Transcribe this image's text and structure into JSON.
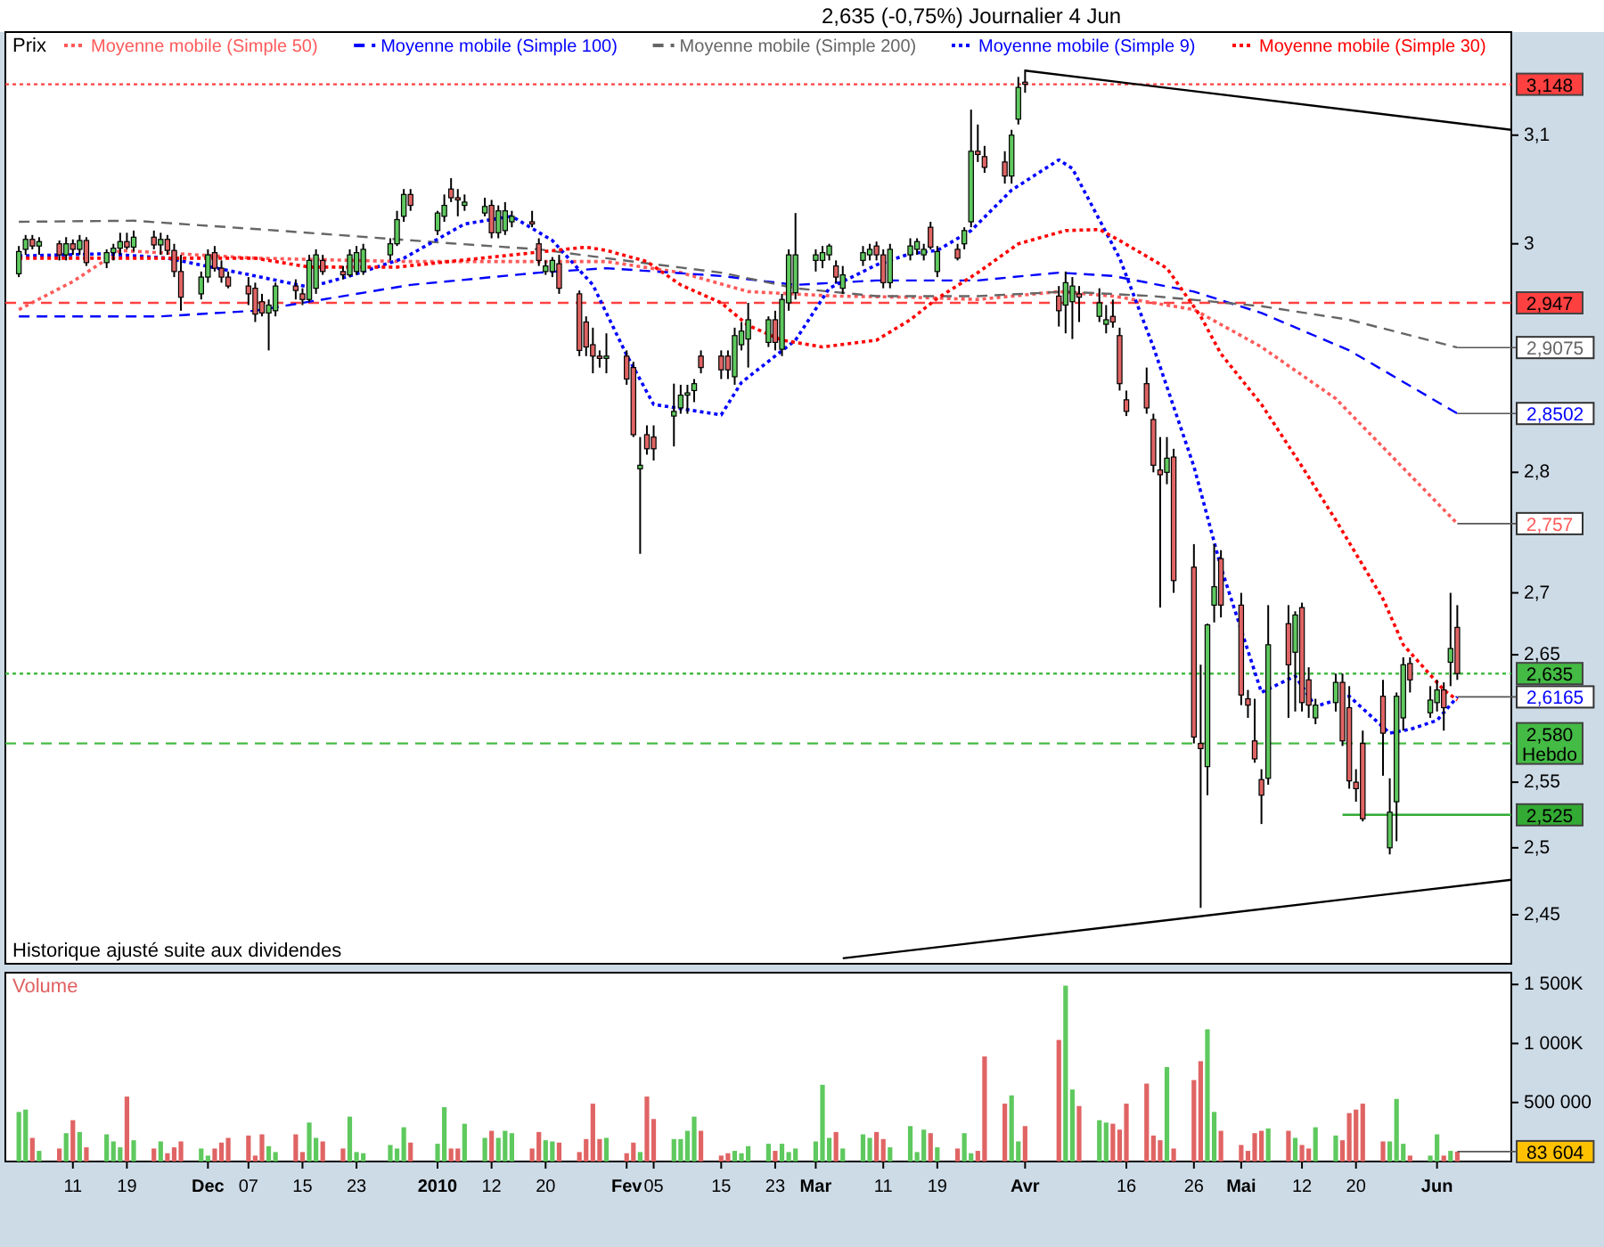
{
  "chart_data": [
    {
      "type": "candlestick",
      "title": "2,635 (-0,75%)   Journalier  4 Jun",
      "ylabel": "Prix",
      "log": "y",
      "legend": "top",
      "tick_labels": "y",
      "annotations": [
        "Historique ajusté suite aux dividendes",
        {
          "text": "2,9075",
          "x": "2010-06-04",
          "y": 2.9075
        },
        {
          "text": "2,8502",
          "x": "2010-06-04",
          "y": 2.8502
        },
        {
          "text": "2,757",
          "x": "2010-06-04",
          "y": 2.757
        },
        {
          "text": "2,6165",
          "x": "2010-06-04",
          "y": 2.6165
        },
        {
          "text": "2,525",
          "x": "2010-06-12",
          "y": 2.525
        }
      ],
      "xlim": [
        "2009-11-01",
        "2010-06-12"
      ],
      "ylim": [
        2.414,
        3.198
      ],
      "yticks": [
        {
          "value": 3.1,
          "label": "3,1"
        },
        3,
        {
          "value": 2.8,
          "label": "2,8"
        },
        {
          "value": 2.7,
          "label": "2,7"
        },
        {
          "value": 2.65,
          "label": "2,65"
        },
        {
          "value": 2.55,
          "label": "2,55"
        },
        {
          "value": 2.5,
          "label": "2,5"
        },
        {
          "value": 2.45,
          "label": "2,45"
        }
      ],
      "x": [
        "2009-11-03",
        "2009-11-04",
        "2009-11-05",
        "2009-11-06",
        "2009-11-09",
        "2009-11-10",
        "2009-11-11",
        "2009-11-12",
        "2009-11-13",
        "2009-11-16",
        "2009-11-17",
        "2009-11-18",
        "2009-11-19",
        "2009-11-20",
        "2009-11-23",
        "2009-11-24",
        "2009-11-25",
        "2009-11-26",
        "2009-11-27",
        "2009-11-30",
        "2009-12-01",
        "2009-12-02",
        "2009-12-03",
        "2009-12-04",
        "2009-12-07",
        "2009-12-08",
        "2009-12-09",
        "2009-12-10",
        "2009-12-11",
        "2009-12-14",
        "2009-12-15",
        "2009-12-16",
        "2009-12-17",
        "2009-12-18",
        "2009-12-21",
        "2009-12-22",
        "2009-12-23",
        "2009-12-24",
        "2009-12-28",
        "2009-12-29",
        "2009-12-30",
        "2009-12-31",
        "2010-01-04",
        "2010-01-05",
        "2010-01-06",
        "2010-01-07",
        "2010-01-08",
        "2010-01-11",
        "2010-01-12",
        "2010-01-13",
        "2010-01-14",
        "2010-01-15",
        "2010-01-18",
        "2010-01-19",
        "2010-01-20",
        "2010-01-21",
        "2010-01-22",
        "2010-01-25",
        "2010-01-26",
        "2010-01-27",
        "2010-01-28",
        "2010-01-29",
        "2010-02-01",
        "2010-02-02",
        "2010-02-03",
        "2010-02-04",
        "2010-02-05",
        "2010-02-08",
        "2010-02-09",
        "2010-02-10",
        "2010-02-11",
        "2010-02-12",
        "2010-02-15",
        "2010-02-16",
        "2010-02-17",
        "2010-02-18",
        "2010-02-19",
        "2010-02-22",
        "2010-02-23",
        "2010-02-24",
        "2010-02-25",
        "2010-02-26",
        "2010-03-01",
        "2010-03-02",
        "2010-03-03",
        "2010-03-04",
        "2010-03-05",
        "2010-03-08",
        "2010-03-09",
        "2010-03-10",
        "2010-03-11",
        "2010-03-12",
        "2010-03-15",
        "2010-03-16",
        "2010-03-17",
        "2010-03-18",
        "2010-03-19",
        "2010-03-22",
        "2010-03-23",
        "2010-03-24",
        "2010-03-25",
        "2010-03-26",
        "2010-03-29",
        "2010-03-30",
        "2010-03-31",
        "2010-04-01",
        "2010-04-06",
        "2010-04-07",
        "2010-04-08",
        "2010-04-09",
        "2010-04-12",
        "2010-04-13",
        "2010-04-14",
        "2010-04-15",
        "2010-04-16",
        "2010-04-19",
        "2010-04-20",
        "2010-04-21",
        "2010-04-22",
        "2010-04-23",
        "2010-04-26",
        "2010-04-27",
        "2010-04-28",
        "2010-04-29",
        "2010-04-30",
        "2010-05-03",
        "2010-05-04",
        "2010-05-05",
        "2010-05-06",
        "2010-05-07",
        "2010-05-10",
        "2010-05-11",
        "2010-05-12",
        "2010-05-13",
        "2010-05-14",
        "2010-05-17",
        "2010-05-18",
        "2010-05-19",
        "2010-05-20",
        "2010-05-21",
        "2010-05-24",
        "2010-05-25",
        "2010-05-26",
        "2010-05-27",
        "2010-05-28",
        "2010-05-31",
        "2010-06-01",
        "2010-06-02",
        "2010-06-03",
        "2010-06-04"
      ],
      "ohlc": [
        [
          2.973,
          2.998,
          2.97,
          2.993
        ],
        [
          2.995,
          3.008,
          2.99,
          3.004
        ],
        [
          3.004,
          3.008,
          2.995,
          2.998
        ],
        [
          2.998,
          3.006,
          2.99,
          3.002
        ],
        [
          3.0,
          3.003,
          2.985,
          2.99
        ],
        [
          2.99,
          3.006,
          2.985,
          3.0
        ],
        [
          3.0,
          3.004,
          2.99,
          2.995
        ],
        [
          2.995,
          3.008,
          2.99,
          3.003
        ],
        [
          3.003,
          3.006,
          2.98,
          2.983
        ],
        [
          2.983,
          2.995,
          2.978,
          2.992
        ],
        [
          2.992,
          3.0,
          2.985,
          2.996
        ],
        [
          2.996,
          3.01,
          2.99,
          3.002
        ],
        [
          3.002,
          3.01,
          2.995,
          2.997
        ],
        [
          2.997,
          3.012,
          2.993,
          3.006
        ],
        [
          3.006,
          3.012,
          2.995,
          2.999
        ],
        [
          2.999,
          3.01,
          2.99,
          3.004
        ],
        [
          3.004,
          3.008,
          2.99,
          2.994
        ],
        [
          2.994,
          3.0,
          2.97,
          2.975
        ],
        [
          2.975,
          2.99,
          2.94,
          2.952
        ],
        [
          2.955,
          2.975,
          2.95,
          2.97
        ],
        [
          2.97,
          2.995,
          2.965,
          2.99
        ],
        [
          2.992,
          2.998,
          2.975,
          2.978
        ],
        [
          2.978,
          2.985,
          2.965,
          2.97
        ],
        [
          2.97,
          2.975,
          2.96,
          2.962
        ],
        [
          2.962,
          2.97,
          2.945,
          2.955
        ],
        [
          2.96,
          2.965,
          2.93,
          2.937
        ],
        [
          2.948,
          2.955,
          2.935,
          2.938
        ],
        [
          2.938,
          2.95,
          2.905,
          2.945
        ],
        [
          2.94,
          2.965,
          2.935,
          2.962
        ],
        [
          2.962,
          2.968,
          2.95,
          2.958
        ],
        [
          2.955,
          2.96,
          2.945,
          2.95
        ],
        [
          2.95,
          2.99,
          2.948,
          2.985
        ],
        [
          2.96,
          2.995,
          2.955,
          2.99
        ],
        [
          2.985,
          2.99,
          2.972,
          2.975
        ],
        [
          2.975,
          2.98,
          2.968,
          2.972
        ],
        [
          2.972,
          2.995,
          2.97,
          2.99
        ],
        [
          2.975,
          2.998,
          2.972,
          2.992
        ],
        [
          2.975,
          3.0,
          2.972,
          2.995
        ],
        [
          2.99,
          3.005,
          2.985,
          3.0
        ],
        [
          3.0,
          3.03,
          2.998,
          3.022
        ],
        [
          3.025,
          3.05,
          3.02,
          3.045
        ],
        [
          3.045,
          3.05,
          3.03,
          3.035
        ],
        [
          3.012,
          3.03,
          3.008,
          3.028
        ],
        [
          3.025,
          3.045,
          3.02,
          3.035
        ],
        [
          3.05,
          3.06,
          3.038,
          3.042
        ],
        [
          3.042,
          3.05,
          3.025,
          3.04
        ],
        [
          3.035,
          3.045,
          3.03,
          3.038
        ],
        [
          3.028,
          3.042,
          3.025,
          3.034
        ],
        [
          3.035,
          3.04,
          3.005,
          3.01
        ],
        [
          3.01,
          3.035,
          3.005,
          3.03
        ],
        [
          3.012,
          3.038,
          3.008,
          3.03
        ],
        [
          3.02,
          3.03,
          3.015,
          3.025
        ],
        [
          3.02,
          3.03,
          3.015,
          3.018
        ],
        [
          3.0,
          3.005,
          2.98,
          2.985
        ],
        [
          2.975,
          2.985,
          2.972,
          2.98
        ],
        [
          2.975,
          2.988,
          2.97,
          2.985
        ],
        [
          2.982,
          2.99,
          2.955,
          2.96
        ],
        [
          2.955,
          2.958,
          2.9,
          2.905
        ],
        [
          2.93,
          2.935,
          2.9,
          2.908
        ],
        [
          2.91,
          2.925,
          2.885,
          2.9
        ],
        [
          2.9,
          2.905,
          2.89,
          2.898
        ],
        [
          2.898,
          2.92,
          2.885,
          2.9
        ],
        [
          2.9,
          2.905,
          2.875,
          2.88
        ],
        [
          2.89,
          2.895,
          2.83,
          2.832
        ],
        [
          2.803,
          2.83,
          2.732,
          2.806
        ],
        [
          2.832,
          2.84,
          2.815,
          2.82
        ],
        [
          2.83,
          2.84,
          2.81,
          2.82
        ],
        [
          2.848,
          2.876,
          2.822,
          2.852
        ],
        [
          2.855,
          2.875,
          2.85,
          2.866
        ],
        [
          2.866,
          2.875,
          2.85,
          2.868
        ],
        [
          2.87,
          2.88,
          2.86,
          2.876
        ],
        [
          2.9,
          2.905,
          2.885,
          2.89
        ],
        [
          2.9,
          2.905,
          2.88,
          2.888
        ],
        [
          2.9,
          2.905,
          2.88,
          2.888
        ],
        [
          2.882,
          2.925,
          2.875,
          2.918
        ],
        [
          2.91,
          2.93,
          2.905,
          2.922
        ],
        [
          2.915,
          2.947,
          2.89,
          2.932
        ],
        [
          2.912,
          2.935,
          2.908,
          2.932
        ],
        [
          2.932,
          2.94,
          2.905,
          2.912
        ],
        [
          2.906,
          2.955,
          2.9,
          2.95
        ],
        [
          2.947,
          2.995,
          2.94,
          2.99
        ],
        [
          2.956,
          3.028,
          2.95,
          2.99
        ],
        [
          2.985,
          2.995,
          2.975,
          2.99
        ],
        [
          2.985,
          2.998,
          2.978,
          2.992
        ],
        [
          2.99,
          3.0,
          2.985,
          2.998
        ],
        [
          2.98,
          2.985,
          2.965,
          2.97
        ],
        [
          2.96,
          2.98,
          2.955,
          2.972
        ],
        [
          2.985,
          2.998,
          2.98,
          2.992
        ],
        [
          2.99,
          3.0,
          2.985,
          2.995
        ],
        [
          2.998,
          3.002,
          2.985,
          2.99
        ],
        [
          2.99,
          2.995,
          2.96,
          2.965
        ],
        [
          2.965,
          3.0,
          2.96,
          2.995
        ],
        [
          2.99,
          3.005,
          2.985,
          2.998
        ],
        [
          2.995,
          3.005,
          2.99,
          3.002
        ],
        [
          2.99,
          3.0,
          2.985,
          2.995
        ],
        [
          3.015,
          3.02,
          2.995,
          2.997
        ],
        [
          2.975,
          2.998,
          2.97,
          2.993
        ],
        [
          2.995,
          3.0,
          2.985,
          2.987
        ],
        [
          3.0,
          3.015,
          2.995,
          3.012
        ],
        [
          3.02,
          3.124,
          3.015,
          3.085
        ],
        [
          3.085,
          3.11,
          3.075,
          3.082
        ],
        [
          3.08,
          3.09,
          3.065,
          3.07
        ],
        [
          3.075,
          3.085,
          3.055,
          3.062
        ],
        [
          3.062,
          3.105,
          3.055,
          3.1
        ],
        [
          3.115,
          3.155,
          3.11,
          3.145
        ],
        [
          3.15,
          3.162,
          3.14,
          3.148
        ],
        [
          2.953,
          2.962,
          2.926,
          2.94
        ],
        [
          2.945,
          2.975,
          2.92,
          2.965
        ],
        [
          2.948,
          2.97,
          2.915,
          2.962
        ],
        [
          2.955,
          2.962,
          2.93,
          2.952
        ],
        [
          2.935,
          2.96,
          2.93,
          2.947
        ],
        [
          2.928,
          2.945,
          2.92,
          2.932
        ],
        [
          2.935,
          2.95,
          2.925,
          2.93
        ],
        [
          2.918,
          2.925,
          2.87,
          2.876
        ],
        [
          2.862,
          2.87,
          2.848,
          2.852
        ],
        [
          2.876,
          2.89,
          2.85,
          2.855
        ],
        [
          2.845,
          2.85,
          2.8,
          2.806
        ],
        [
          2.802,
          2.83,
          2.688,
          2.798
        ],
        [
          2.8,
          2.83,
          2.79,
          2.812
        ],
        [
          2.813,
          2.82,
          2.7,
          2.71
        ],
        [
          2.721,
          2.74,
          2.58,
          2.585
        ],
        [
          2.58,
          2.642,
          2.455,
          2.576
        ],
        [
          2.562,
          2.675,
          2.54,
          2.674
        ],
        [
          2.69,
          2.74,
          2.676,
          2.705
        ],
        [
          2.728,
          2.735,
          2.68,
          2.69
        ],
        [
          2.69,
          2.7,
          2.61,
          2.618
        ],
        [
          2.615,
          2.622,
          2.6,
          2.61
        ],
        [
          2.582,
          2.615,
          2.565,
          2.568
        ],
        [
          2.552,
          2.56,
          2.518,
          2.54
        ],
        [
          2.553,
          2.69,
          2.548,
          2.658
        ],
        [
          2.675,
          2.69,
          2.6,
          2.642
        ],
        [
          2.652,
          2.685,
          2.605,
          2.682
        ],
        [
          2.688,
          2.692,
          2.605,
          2.612
        ],
        [
          2.63,
          2.64,
          2.6,
          2.61
        ],
        [
          2.6,
          2.615,
          2.595,
          2.61
        ],
        [
          2.612,
          2.635,
          2.605,
          2.628
        ],
        [
          2.628,
          2.635,
          2.578,
          2.582
        ],
        [
          2.608,
          2.625,
          2.545,
          2.551
        ],
        [
          2.55,
          2.56,
          2.535,
          2.545
        ],
        [
          2.58,
          2.59,
          2.52,
          2.522
        ],
        [
          2.617,
          2.63,
          2.555,
          2.588
        ],
        [
          2.5,
          2.553,
          2.495,
          2.527
        ],
        [
          2.535,
          2.62,
          2.505,
          2.617
        ],
        [
          2.6,
          2.648,
          2.59,
          2.642
        ],
        [
          2.643,
          2.648,
          2.62,
          2.63
        ],
        [
          2.604,
          2.625,
          2.6,
          2.614
        ],
        [
          2.612,
          2.63,
          2.605,
          2.622
        ],
        [
          2.622,
          2.628,
          2.59,
          2.608
        ],
        [
          2.644,
          2.7,
          2.625,
          2.655
        ],
        [
          2.672,
          2.69,
          2.63,
          2.635
        ]
      ],
      "colors": [
        "#5ec95e",
        "#5ec95e",
        "#e06464",
        "#5ec95e",
        "#e06464",
        "#5ec95e",
        "#e06464",
        "#5ec95e",
        "#e06464",
        "#5ec95e",
        "#5ec95e",
        "#5ec95e",
        "#e06464",
        "#5ec95e",
        "#e06464",
        "#5ec95e",
        "#e06464",
        "#e06464",
        "#e06464",
        "#5ec95e",
        "#5ec95e",
        "#e06464",
        "#e06464",
        "#e06464",
        "#e06464",
        "#e06464",
        "#e06464",
        "#5ec95e",
        "#5ec95e",
        "#e06464",
        "#e06464",
        "#5ec95e",
        "#5ec95e",
        "#e06464",
        "#e06464",
        "#5ec95e",
        "#5ec95e",
        "#5ec95e",
        "#5ec95e",
        "#5ec95e",
        "#5ec95e",
        "#e06464",
        "#5ec95e",
        "#5ec95e",
        "#e06464",
        "#e06464",
        "#5ec95e",
        "#5ec95e",
        "#e06464",
        "#5ec95e",
        "#5ec95e",
        "#5ec95e",
        "#e06464",
        "#e06464",
        "#5ec95e",
        "#5ec95e",
        "#e06464",
        "#e06464",
        "#e06464",
        "#e06464",
        "#e06464",
        "#5ec95e",
        "#e06464",
        "#e06464",
        "#5ec95e",
        "#e06464",
        "#e06464",
        "#5ec95e",
        "#5ec95e",
        "#5ec95e",
        "#5ec95e",
        "#e06464",
        "#e06464",
        "#e06464",
        "#5ec95e",
        "#5ec95e",
        "#5ec95e",
        "#5ec95e",
        "#e06464",
        "#5ec95e",
        "#5ec95e",
        "#5ec95e",
        "#5ec95e",
        "#5ec95e",
        "#5ec95e",
        "#e06464",
        "#5ec95e",
        "#5ec95e",
        "#5ec95e",
        "#e06464",
        "#e06464",
        "#5ec95e",
        "#5ec95e",
        "#5ec95e",
        "#5ec95e",
        "#e06464",
        "#5ec95e",
        "#e06464",
        "#5ec95e",
        "#5ec95e",
        "#e06464",
        "#e06464",
        "#e06464",
        "#5ec95e",
        "#5ec95e",
        "#e06464",
        "#e06464",
        "#5ec95e",
        "#5ec95e",
        "#e06464",
        "#5ec95e",
        "#5ec95e",
        "#e06464",
        "#e06464",
        "#e06464",
        "#e06464",
        "#e06464",
        "#e06464",
        "#5ec95e",
        "#e06464",
        "#e06464",
        "#e06464",
        "#5ec95e",
        "#5ec95e",
        "#e06464",
        "#e06464",
        "#e06464",
        "#e06464",
        "#e06464",
        "#5ec95e",
        "#e06464",
        "#5ec95e",
        "#e06464",
        "#e06464",
        "#5ec95e",
        "#5ec95e",
        "#e06464",
        "#e06464",
        "#e06464",
        "#e06464",
        "#e06464",
        "#5ec95e",
        "#5ec95e",
        "#5ec95e",
        "#e06464",
        "#5ec95e",
        "#5ec95e",
        "#e06464",
        "#5ec95e",
        "#e06464"
      ],
      "series": [
        {
          "type": "line",
          "name": "Moyenne mobile (Simple 50)",
          "color": "#ff5a5a",
          "line_style": "dotted",
          "x": [
            "2009-11-03",
            "2009-11-11",
            "2009-11-18",
            "2009-12-08",
            "2009-12-30",
            "2010-01-21",
            "2010-01-29",
            "2010-02-09",
            "2010-02-19",
            "2010-03-04",
            "2010-03-15",
            "2010-03-25",
            "2010-04-06",
            "2010-04-14",
            "2010-04-26",
            "2010-05-06",
            "2010-05-17",
            "2010-06-04"
          ],
          "values": [
            2.941,
            2.966,
            2.994,
            2.987,
            2.984,
            2.984,
            2.984,
            2.974,
            2.957,
            2.953,
            2.952,
            2.95,
            2.957,
            2.953,
            2.941,
            2.908,
            2.863,
            2.757
          ]
        },
        {
          "type": "line",
          "name": "Moyenne mobile (Simple 100)",
          "color": "#0000ff",
          "line_style": "dashed",
          "x": [
            "2009-11-03",
            "2009-11-24",
            "2009-12-08",
            "2009-12-18",
            "2009-12-31",
            "2010-01-19",
            "2010-01-29",
            "2010-02-15",
            "2010-02-26",
            "2010-03-10",
            "2010-03-25",
            "2010-04-06",
            "2010-04-14",
            "2010-04-26",
            "2010-05-06",
            "2010-05-19",
            "2010-06-04"
          ],
          "values": [
            2.935,
            2.935,
            2.94,
            2.95,
            2.963,
            2.974,
            2.978,
            2.971,
            2.963,
            2.967,
            2.967,
            2.974,
            2.971,
            2.957,
            2.938,
            2.905,
            2.8502
          ]
        },
        {
          "type": "line",
          "name": "Moyenne mobile (Simple 200)",
          "color": "#666666",
          "line_style": "dashed",
          "x": [
            "2009-11-03",
            "2009-11-20",
            "2009-12-09",
            "2009-12-18",
            "2010-01-07",
            "2010-01-19",
            "2010-01-29",
            "2010-02-15",
            "2010-02-26",
            "2010-03-10",
            "2010-03-25",
            "2010-04-07",
            "2010-04-20",
            "2010-05-06",
            "2010-05-19",
            "2010-06-04"
          ],
          "values": [
            3.02,
            3.021,
            3.013,
            3.009,
            3.0,
            2.995,
            2.987,
            2.974,
            2.96,
            2.953,
            2.953,
            2.957,
            2.953,
            2.944,
            2.932,
            2.9075
          ]
        },
        {
          "type": "line",
          "name": "Moyenne mobile (Simple 9)",
          "color": "#0000ff",
          "line_style": "dotted",
          "x": [
            "2009-11-03",
            "2009-11-16",
            "2009-11-25",
            "2009-12-08",
            "2009-12-16",
            "2009-12-22",
            "2009-12-30",
            "2010-01-08",
            "2010-01-15",
            "2010-01-21",
            "2010-01-27",
            "2010-02-01",
            "2010-02-05",
            "2010-02-15",
            "2010-02-18",
            "2010-02-26",
            "2010-03-03",
            "2010-03-10",
            "2010-03-15",
            "2010-03-19",
            "2010-03-24",
            "2010-03-30",
            "2010-04-06",
            "2010-04-08",
            "2010-04-15",
            "2010-04-20",
            "2010-04-26",
            "2010-04-30",
            "2010-05-06",
            "2010-05-11",
            "2010-05-14",
            "2010-05-19",
            "2010-05-25",
            "2010-05-28",
            "2010-06-01",
            "2010-06-04"
          ],
          "values": [
            2.989,
            2.991,
            2.987,
            2.971,
            2.961,
            2.971,
            2.987,
            3.018,
            3.025,
            3.003,
            2.963,
            2.901,
            2.858,
            2.849,
            2.877,
            2.914,
            2.96,
            2.981,
            2.991,
            2.994,
            3.012,
            3.049,
            3.077,
            3.069,
            2.987,
            2.908,
            2.805,
            2.721,
            2.62,
            2.633,
            2.609,
            2.617,
            2.588,
            2.591,
            2.598,
            2.6165
          ]
        },
        {
          "type": "line",
          "name": "Moyenne mobile (Simple 30)",
          "color": "#ff0000",
          "line_style": "dotted",
          "x": [
            "2009-11-03",
            "2009-11-25",
            "2009-12-08",
            "2009-12-16",
            "2009-12-22",
            "2009-12-29",
            "2010-01-26",
            "2010-01-29",
            "2010-02-04",
            "2010-02-09",
            "2010-02-15",
            "2010-02-19",
            "2010-02-24",
            "2010-03-02",
            "2010-03-10",
            "2010-03-15",
            "2010-03-19",
            "2010-03-25",
            "2010-03-31",
            "2010-04-07",
            "2010-04-12",
            "2010-04-15",
            "2010-04-22",
            "2010-04-27",
            "2010-04-30",
            "2010-05-06",
            "2010-05-12",
            "2010-05-17",
            "2010-05-24",
            "2010-05-27",
            "2010-06-02",
            "2010-06-04"
          ],
          "values": [
            2.987,
            2.987,
            2.987,
            2.979,
            2.979,
            2.979,
            2.997,
            2.994,
            2.984,
            2.963,
            2.947,
            2.927,
            2.914,
            2.908,
            2.914,
            2.932,
            2.951,
            2.974,
            3.0,
            3.012,
            3.013,
            3.003,
            2.978,
            2.935,
            2.902,
            2.858,
            2.805,
            2.76,
            2.695,
            2.658,
            2.622,
            2.614
          ]
        },
        {
          "type": "line",
          "color": "#33aa33",
          "line_style": "solid",
          "x": [
            "2010-05-18",
            "2010-06-12"
          ],
          "values": [
            2.525,
            2.525
          ]
        },
        {
          "type": "line",
          "color": "#000000",
          "line_style": "solid",
          "x": [
            "2010-04-01",
            "2010-06-12"
          ],
          "values": [
            3.161,
            3.105
          ]
        },
        {
          "type": "line",
          "color": "#000000",
          "line_style": "solid",
          "x": [
            "2010-03-05",
            "2010-06-12"
          ],
          "values": [
            2.418,
            2.476
          ]
        }
      ],
      "ref_lines": [
        {
          "axis": "y",
          "value": 3.148,
          "label": "3,148",
          "color": "#ff4040",
          "line_style": "dotted"
        },
        {
          "axis": "y",
          "value": 2.947,
          "label": "2,947",
          "color": "#ff4040",
          "line_style": "dashed"
        },
        {
          "axis": "y",
          "value": 2.635,
          "label": "2,635",
          "color": "#44bb44",
          "line_style": "dotted"
        },
        {
          "axis": "y",
          "value": 2.58,
          "label": "2,580 Hebdo",
          "color": "#44bb44",
          "line_style": "dashed"
        }
      ]
    },
    {
      "type": "bar",
      "title": "Volume",
      "xlim": [
        "2009-11-01",
        "2010-06-12"
      ],
      "ylim": [
        0,
        1600000
      ],
      "annotations": [
        {
          "text": "83 604",
          "x": "2010-06-04",
          "y": 83604
        }
      ],
      "yticks": [
        {
          "value": 1500000,
          "label": "1 500K"
        },
        {
          "value": 1000000,
          "label": "1 000K"
        },
        {
          "value": 500000,
          "label": "500 000"
        }
      ],
      "xticks": [
        {
          "value": "2009-11-11",
          "label": "11"
        },
        {
          "value": "2009-11-19",
          "label": "19"
        },
        {
          "value": "2009-12-01",
          "label": "Dec"
        },
        {
          "value": "2009-12-07",
          "label": "07"
        },
        {
          "value": "2009-12-15",
          "label": "15"
        },
        {
          "value": "2009-12-23",
          "label": "23"
        },
        {
          "value": "2010-01-04",
          "label": "2010"
        },
        {
          "value": "2010-01-12",
          "label": "12"
        },
        {
          "value": "2010-01-20",
          "label": "20"
        },
        {
          "value": "2010-02-01",
          "label": "Fev"
        },
        {
          "value": "2010-02-05",
          "label": "05"
        },
        {
          "value": "2010-02-15",
          "label": "15"
        },
        {
          "value": "2010-02-23",
          "label": "23"
        },
        {
          "value": "2010-03-01",
          "label": "Mar"
        },
        {
          "value": "2010-03-11",
          "label": "11"
        },
        {
          "value": "2010-03-19",
          "label": "19"
        },
        {
          "value": "2010-04-01",
          "label": "Avr"
        },
        {
          "value": "2010-04-16",
          "label": "16"
        },
        {
          "value": "2010-04-26",
          "label": "26"
        },
        {
          "value": "2010-05-03",
          "label": "Mai"
        },
        {
          "value": "2010-05-12",
          "label": "12"
        },
        {
          "value": "2010-05-20",
          "label": "20"
        },
        {
          "value": "2010-06-01",
          "label": "Jun"
        }
      ],
      "x": [
        "2009-11-03",
        "2009-11-04",
        "2009-11-05",
        "2009-11-06",
        "2009-11-09",
        "2009-11-10",
        "2009-11-11",
        "2009-11-12",
        "2009-11-13",
        "2009-11-16",
        "2009-11-17",
        "2009-11-18",
        "2009-11-19",
        "2009-11-20",
        "2009-11-23",
        "2009-11-24",
        "2009-11-25",
        "2009-11-26",
        "2009-11-27",
        "2009-11-30",
        "2009-12-01",
        "2009-12-02",
        "2009-12-03",
        "2009-12-04",
        "2009-12-07",
        "2009-12-08",
        "2009-12-09",
        "2009-12-10",
        "2009-12-11",
        "2009-12-14",
        "2009-12-15",
        "2009-12-16",
        "2009-12-17",
        "2009-12-18",
        "2009-12-21",
        "2009-12-22",
        "2009-12-23",
        "2009-12-24",
        "2009-12-28",
        "2009-12-29",
        "2009-12-30",
        "2009-12-31",
        "2010-01-04",
        "2010-01-05",
        "2010-01-06",
        "2010-01-07",
        "2010-01-08",
        "2010-01-11",
        "2010-01-12",
        "2010-01-13",
        "2010-01-14",
        "2010-01-15",
        "2010-01-18",
        "2010-01-19",
        "2010-01-20",
        "2010-01-21",
        "2010-01-22",
        "2010-01-25",
        "2010-01-26",
        "2010-01-27",
        "2010-01-28",
        "2010-01-29",
        "2010-02-01",
        "2010-02-02",
        "2010-02-03",
        "2010-02-04",
        "2010-02-05",
        "2010-02-08",
        "2010-02-09",
        "2010-02-10",
        "2010-02-11",
        "2010-02-12",
        "2010-02-15",
        "2010-02-16",
        "2010-02-17",
        "2010-02-18",
        "2010-02-19",
        "2010-02-22",
        "2010-02-23",
        "2010-02-24",
        "2010-02-25",
        "2010-02-26",
        "2010-03-01",
        "2010-03-02",
        "2010-03-03",
        "2010-03-04",
        "2010-03-05",
        "2010-03-08",
        "2010-03-09",
        "2010-03-10",
        "2010-03-11",
        "2010-03-12",
        "2010-03-15",
        "2010-03-16",
        "2010-03-17",
        "2010-03-18",
        "2010-03-19",
        "2010-03-22",
        "2010-03-23",
        "2010-03-24",
        "2010-03-25",
        "2010-03-26",
        "2010-03-29",
        "2010-03-30",
        "2010-03-31",
        "2010-04-01",
        "2010-04-06",
        "2010-04-07",
        "2010-04-08",
        "2010-04-09",
        "2010-04-12",
        "2010-04-13",
        "2010-04-14",
        "2010-04-15",
        "2010-04-16",
        "2010-04-19",
        "2010-04-20",
        "2010-04-21",
        "2010-04-22",
        "2010-04-23",
        "2010-04-26",
        "2010-04-27",
        "2010-04-28",
        "2010-04-29",
        "2010-04-30",
        "2010-05-03",
        "2010-05-04",
        "2010-05-05",
        "2010-05-06",
        "2010-05-07",
        "2010-05-10",
        "2010-05-11",
        "2010-05-12",
        "2010-05-13",
        "2010-05-14",
        "2010-05-17",
        "2010-05-18",
        "2010-05-19",
        "2010-05-20",
        "2010-05-21",
        "2010-05-24",
        "2010-05-25",
        "2010-05-26",
        "2010-05-27",
        "2010-05-28",
        "2010-05-31",
        "2010-06-01",
        "2010-06-02",
        "2010-06-03",
        "2010-06-04"
      ],
      "values": [
        420000,
        440000,
        200000,
        90000,
        110000,
        240000,
        350000,
        250000,
        120000,
        230000,
        170000,
        120000,
        550000,
        180000,
        110000,
        170000,
        70000,
        120000,
        170000,
        110000,
        50000,
        110000,
        160000,
        200000,
        220000,
        50000,
        230000,
        130000,
        80000,
        230000,
        80000,
        330000,
        200000,
        170000,
        110000,
        380000,
        80000,
        70000,
        140000,
        110000,
        290000,
        160000,
        150000,
        460000,
        110000,
        110000,
        320000,
        200000,
        260000,
        200000,
        260000,
        240000,
        110000,
        250000,
        180000,
        170000,
        160000,
        80000,
        190000,
        490000,
        190000,
        200000,
        70000,
        160000,
        80000,
        550000,
        360000,
        190000,
        190000,
        260000,
        380000,
        260000,
        50000,
        70000,
        90000,
        70000,
        130000,
        150000,
        90000,
        150000,
        80000,
        110000,
        170000,
        650000,
        200000,
        250000,
        110000,
        230000,
        200000,
        250000,
        190000,
        120000,
        300000,
        80000,
        270000,
        240000,
        120000,
        110000,
        240000,
        70000,
        90000,
        890000,
        490000,
        560000,
        170000,
        300000,
        1030000,
        1490000,
        610000,
        470000,
        350000,
        330000,
        320000,
        270000,
        490000,
        660000,
        220000,
        180000,
        800000,
        110000,
        690000,
        850000,
        1120000,
        420000,
        260000,
        140000,
        90000,
        240000,
        260000,
        280000,
        260000,
        200000,
        140000,
        110000,
        290000,
        220000,
        180000,
        410000,
        440000,
        490000,
        170000,
        170000,
        530000,
        150000,
        50000,
        50000,
        230000,
        50000,
        90000,
        83604
      ],
      "colors": [
        "#5ec95e",
        "#5ec95e",
        "#e06464",
        "#5ec95e",
        "#e06464",
        "#5ec95e",
        "#e06464",
        "#5ec95e",
        "#e06464",
        "#5ec95e",
        "#5ec95e",
        "#5ec95e",
        "#e06464",
        "#5ec95e",
        "#e06464",
        "#5ec95e",
        "#e06464",
        "#e06464",
        "#e06464",
        "#5ec95e",
        "#5ec95e",
        "#e06464",
        "#e06464",
        "#e06464",
        "#e06464",
        "#e06464",
        "#e06464",
        "#5ec95e",
        "#5ec95e",
        "#e06464",
        "#e06464",
        "#5ec95e",
        "#5ec95e",
        "#e06464",
        "#e06464",
        "#5ec95e",
        "#5ec95e",
        "#5ec95e",
        "#5ec95e",
        "#5ec95e",
        "#5ec95e",
        "#e06464",
        "#5ec95e",
        "#5ec95e",
        "#e06464",
        "#e06464",
        "#5ec95e",
        "#5ec95e",
        "#e06464",
        "#5ec95e",
        "#5ec95e",
        "#5ec95e",
        "#e06464",
        "#e06464",
        "#5ec95e",
        "#5ec95e",
        "#e06464",
        "#e06464",
        "#e06464",
        "#e06464",
        "#e06464",
        "#5ec95e",
        "#e06464",
        "#e06464",
        "#5ec95e",
        "#e06464",
        "#e06464",
        "#5ec95e",
        "#5ec95e",
        "#5ec95e",
        "#5ec95e",
        "#e06464",
        "#e06464",
        "#e06464",
        "#5ec95e",
        "#5ec95e",
        "#5ec95e",
        "#5ec95e",
        "#e06464",
        "#5ec95e",
        "#5ec95e",
        "#5ec95e",
        "#5ec95e",
        "#5ec95e",
        "#5ec95e",
        "#e06464",
        "#5ec95e",
        "#5ec95e",
        "#5ec95e",
        "#e06464",
        "#e06464",
        "#5ec95e",
        "#5ec95e",
        "#5ec95e",
        "#5ec95e",
        "#e06464",
        "#5ec95e",
        "#e06464",
        "#5ec95e",
        "#5ec95e",
        "#e06464",
        "#e06464",
        "#e06464",
        "#5ec95e",
        "#5ec95e",
        "#e06464",
        "#e06464",
        "#5ec95e",
        "#5ec95e",
        "#e06464",
        "#5ec95e",
        "#5ec95e",
        "#e06464",
        "#e06464",
        "#e06464",
        "#e06464",
        "#e06464",
        "#e06464",
        "#5ec95e",
        "#e06464",
        "#e06464",
        "#e06464",
        "#5ec95e",
        "#5ec95e",
        "#e06464",
        "#e06464",
        "#e06464",
        "#e06464",
        "#e06464",
        "#5ec95e",
        "#e06464",
        "#5ec95e",
        "#e06464",
        "#e06464",
        "#5ec95e",
        "#5ec95e",
        "#e06464",
        "#e06464",
        "#e06464",
        "#e06464",
        "#e06464",
        "#5ec95e",
        "#5ec95e",
        "#5ec95e",
        "#e06464",
        "#5ec95e",
        "#5ec95e",
        "#e06464",
        "#5ec95e",
        "#e06464"
      ]
    }
  ]
}
